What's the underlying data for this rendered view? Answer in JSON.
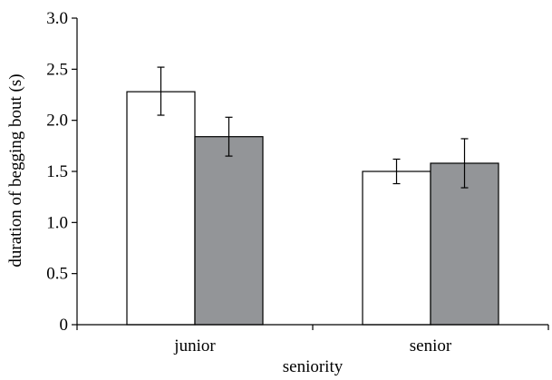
{
  "chart_data": {
    "type": "bar",
    "title": "",
    "xlabel": "seniority",
    "ylabel": "duration of begging bout (s)",
    "ylim": [
      0,
      3.0
    ],
    "yticks": [
      "0",
      "0.5",
      "1.0",
      "1.5",
      "2.0",
      "2.5",
      "3.0"
    ],
    "categories": [
      "junior",
      "senior"
    ],
    "grid": false,
    "legend": "none",
    "series": [
      {
        "color": "#ffffff",
        "values": [
          2.28,
          1.5
        ],
        "err_low": [
          2.05,
          1.38
        ],
        "err_high": [
          2.52,
          1.62
        ]
      },
      {
        "color": "#939598",
        "values": [
          1.84,
          1.58
        ],
        "err_low": [
          1.65,
          1.34
        ],
        "err_high": [
          2.03,
          1.82
        ]
      }
    ]
  }
}
